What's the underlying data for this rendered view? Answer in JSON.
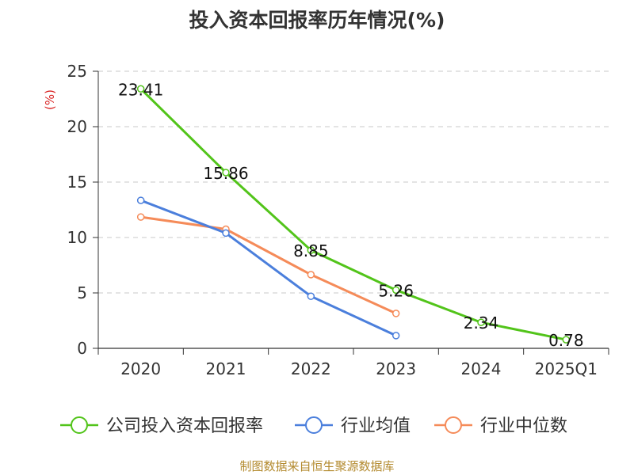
{
  "chart_data": {
    "type": "line",
    "title": "投入资本回报率历年情况(%)",
    "ylabel": "(%)",
    "ylim": [
      0,
      25
    ],
    "yticks": [
      0,
      5,
      10,
      15,
      20,
      25
    ],
    "categories": [
      "2020",
      "2021",
      "2022",
      "2023",
      "2024",
      "2025Q1"
    ],
    "grid": true,
    "legend_position": "bottom",
    "series": [
      {
        "name": "公司投入资本回报率",
        "values": [
          23.41,
          15.86,
          8.85,
          5.26,
          2.34,
          0.78
        ],
        "labels": [
          "23.41",
          "15.86",
          "8.85",
          "5.26",
          "2.34",
          "0.78"
        ],
        "color": "#52c41a"
      },
      {
        "name": "行业均值",
        "values": [
          13.35,
          10.4,
          4.7,
          1.15,
          null,
          null
        ],
        "color": "#4b7fdc"
      },
      {
        "name": "行业中位数",
        "values": [
          11.85,
          10.75,
          6.65,
          3.15,
          null,
          null
        ],
        "color": "#f58b59"
      }
    ],
    "source": "制图数据来自恒生聚源数据库"
  }
}
